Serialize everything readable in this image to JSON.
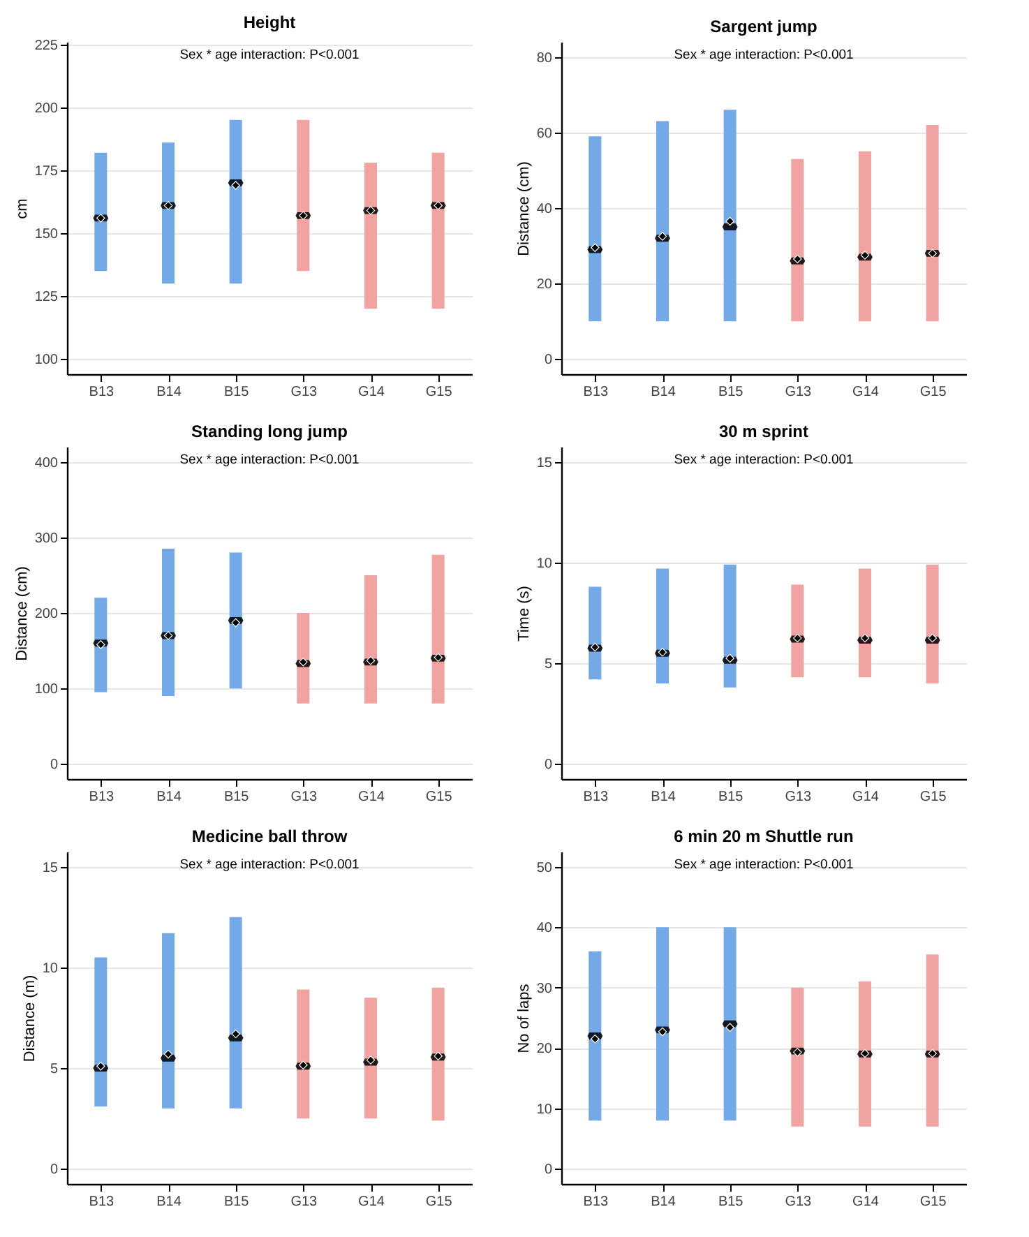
{
  "chart_data": [
    {
      "type": "bar",
      "title": "Height",
      "ylabel": "cm",
      "annotations": [
        "Sex * age interaction: P<0.001"
      ],
      "categories": [
        "B13",
        "B14",
        "B15",
        "G13",
        "G14",
        "G15"
      ],
      "ylim": [
        94,
        226
      ],
      "yticks": [
        100,
        125,
        150,
        175,
        200,
        225
      ],
      "grid": "y",
      "series": [
        {
          "colors": [
            "#74a9e8",
            "#74a9e8",
            "#74a9e8",
            "#f0a3a0",
            "#f0a3a0",
            "#f0a3a0"
          ],
          "base": [
            135,
            130,
            130,
            135,
            120,
            120
          ],
          "values": [
            47,
            56,
            65,
            60,
            58,
            62
          ]
        },
        {
          "type": "scatter",
          "color": "#000000",
          "marker": "diamond",
          "x": [
            "B13",
            "B14",
            "B15",
            "G13",
            "G14",
            "G15"
          ],
          "values": [
            156,
            161,
            169,
            157,
            159,
            161
          ]
        },
        {
          "type": "scatter",
          "color": "#000000",
          "x": [
            "B13",
            "B14",
            "B15",
            "G13",
            "G14",
            "G15"
          ],
          "values": [
            156,
            161,
            170,
            157,
            159,
            161
          ]
        }
      ]
    },
    {
      "type": "bar",
      "title": "Sargent jump",
      "ylabel": "Distance (cm)",
      "annotations": [
        "Sex * age interaction: P<0.001"
      ],
      "categories": [
        "B13",
        "B14",
        "B15",
        "G13",
        "G14",
        "G15"
      ],
      "ylim": [
        -4,
        84
      ],
      "yticks": [
        0,
        20,
        40,
        60,
        80
      ],
      "grid": "y",
      "series": [
        {
          "colors": [
            "#74a9e8",
            "#74a9e8",
            "#74a9e8",
            "#f0a3a0",
            "#f0a3a0",
            "#f0a3a0"
          ],
          "base": [
            10,
            10,
            10,
            10,
            10,
            10
          ],
          "values": [
            49,
            53,
            56,
            43,
            45,
            52
          ]
        },
        {
          "type": "scatter",
          "color": "#000000",
          "marker": "diamond",
          "x": [
            "B13",
            "B14",
            "B15",
            "G13",
            "G14",
            "G15"
          ],
          "values": [
            29.5,
            32.5,
            36.5,
            26.5,
            27.5,
            28
          ]
        },
        {
          "type": "scatter",
          "color": "#000000",
          "x": [
            "B13",
            "B14",
            "B15",
            "G13",
            "G14",
            "G15"
          ],
          "values": [
            29,
            32,
            35,
            26,
            27,
            28
          ]
        }
      ]
    },
    {
      "type": "bar",
      "title": "Standing long jump",
      "ylabel": "Distance (cm)",
      "annotations": [
        "Sex * age interaction: P<0.001"
      ],
      "categories": [
        "B13",
        "B14",
        "B15",
        "G13",
        "G14",
        "G15"
      ],
      "ylim": [
        -20,
        420
      ],
      "yticks": [
        0,
        100,
        200,
        300,
        400
      ],
      "grid": "y",
      "series": [
        {
          "colors": [
            "#74a9e8",
            "#74a9e8",
            "#74a9e8",
            "#f0a3a0",
            "#f0a3a0",
            "#f0a3a0"
          ],
          "base": [
            95,
            90,
            100,
            80,
            80,
            80
          ],
          "values": [
            125,
            195,
            180,
            120,
            170,
            197
          ]
        },
        {
          "type": "scatter",
          "color": "#000000",
          "marker": "diamond",
          "x": [
            "B13",
            "B14",
            "B15",
            "G13",
            "G14",
            "G15"
          ],
          "values": [
            158,
            170,
            187,
            135,
            137,
            141
          ]
        },
        {
          "type": "scatter",
          "color": "#000000",
          "x": [
            "B13",
            "B14",
            "B15",
            "G13",
            "G14",
            "G15"
          ],
          "values": [
            160,
            170,
            190,
            133,
            135,
            140
          ]
        }
      ]
    },
    {
      "type": "bar",
      "title": "30 m sprint",
      "ylabel": "Time (s)",
      "annotations": [
        "Sex * age interaction: P<0.001"
      ],
      "categories": [
        "B13",
        "B14",
        "B15",
        "G13",
        "G14",
        "G15"
      ],
      "ylim": [
        -0.75,
        15.75
      ],
      "yticks": [
        0,
        5,
        10,
        15
      ],
      "grid": "y",
      "series": [
        {
          "colors": [
            "#74a9e8",
            "#74a9e8",
            "#74a9e8",
            "#f0a3a0",
            "#f0a3a0",
            "#f0a3a0"
          ],
          "base": [
            4.2,
            4.0,
            3.8,
            4.3,
            4.3,
            4.0
          ],
          "values": [
            4.6,
            5.7,
            6.1,
            4.6,
            5.4,
            5.9
          ]
        },
        {
          "type": "scatter",
          "color": "#000000",
          "marker": "diamond",
          "x": [
            "B13",
            "B14",
            "B15",
            "G13",
            "G14",
            "G15"
          ],
          "values": [
            5.8,
            5.55,
            5.25,
            6.25,
            6.25,
            6.25
          ]
        },
        {
          "type": "scatter",
          "color": "#000000",
          "x": [
            "B13",
            "B14",
            "B15",
            "G13",
            "G14",
            "G15"
          ],
          "values": [
            5.75,
            5.5,
            5.15,
            6.2,
            6.15,
            6.15
          ]
        }
      ]
    },
    {
      "type": "bar",
      "title": "Medicine ball throw",
      "ylabel": "Distance (m)",
      "annotations": [
        "Sex * age interaction: P<0.001"
      ],
      "categories": [
        "B13",
        "B14",
        "B15",
        "G13",
        "G14",
        "G15"
      ],
      "ylim": [
        -0.75,
        15.75
      ],
      "yticks": [
        0,
        5,
        10,
        15
      ],
      "grid": "y",
      "series": [
        {
          "colors": [
            "#74a9e8",
            "#74a9e8",
            "#74a9e8",
            "#f0a3a0",
            "#f0a3a0",
            "#f0a3a0"
          ],
          "base": [
            3.1,
            3.0,
            3.0,
            2.5,
            2.5,
            2.4
          ],
          "values": [
            7.4,
            8.7,
            9.5,
            6.4,
            6.0,
            6.6
          ]
        },
        {
          "type": "scatter",
          "color": "#000000",
          "marker": "diamond",
          "x": [
            "B13",
            "B14",
            "B15",
            "G13",
            "G14",
            "G15"
          ],
          "values": [
            5.1,
            5.7,
            6.7,
            5.15,
            5.4,
            5.6
          ]
        },
        {
          "type": "scatter",
          "color": "#000000",
          "x": [
            "B13",
            "B14",
            "B15",
            "G13",
            "G14",
            "G15"
          ],
          "values": [
            5.0,
            5.5,
            6.5,
            5.1,
            5.3,
            5.55
          ]
        }
      ]
    },
    {
      "type": "bar",
      "title": "6 min 20 m Shuttle run",
      "ylabel": "No of laps",
      "annotations": [
        "Sex * age interaction: P<0.001"
      ],
      "categories": [
        "B13",
        "B14",
        "B15",
        "G13",
        "G14",
        "G15"
      ],
      "ylim": [
        -2.5,
        52.5
      ],
      "yticks": [
        0,
        10,
        20,
        30,
        40,
        50
      ],
      "grid": "y",
      "series": [
        {
          "colors": [
            "#74a9e8",
            "#74a9e8",
            "#74a9e8",
            "#f0a3a0",
            "#f0a3a0",
            "#f0a3a0"
          ],
          "base": [
            8,
            8,
            8,
            7,
            7,
            7
          ],
          "values": [
            28,
            32,
            32,
            23,
            24,
            28.5
          ]
        },
        {
          "type": "scatter",
          "color": "#000000",
          "marker": "diamond",
          "x": [
            "B13",
            "B14",
            "B15",
            "G13",
            "G14",
            "G15"
          ],
          "values": [
            21.5,
            22.7,
            23.4,
            19.3,
            19.1,
            19.1
          ]
        },
        {
          "type": "scatter",
          "color": "#000000",
          "x": [
            "B13",
            "B14",
            "B15",
            "G13",
            "G14",
            "G15"
          ],
          "values": [
            22,
            23,
            24,
            19.5,
            19,
            19
          ]
        }
      ]
    }
  ]
}
